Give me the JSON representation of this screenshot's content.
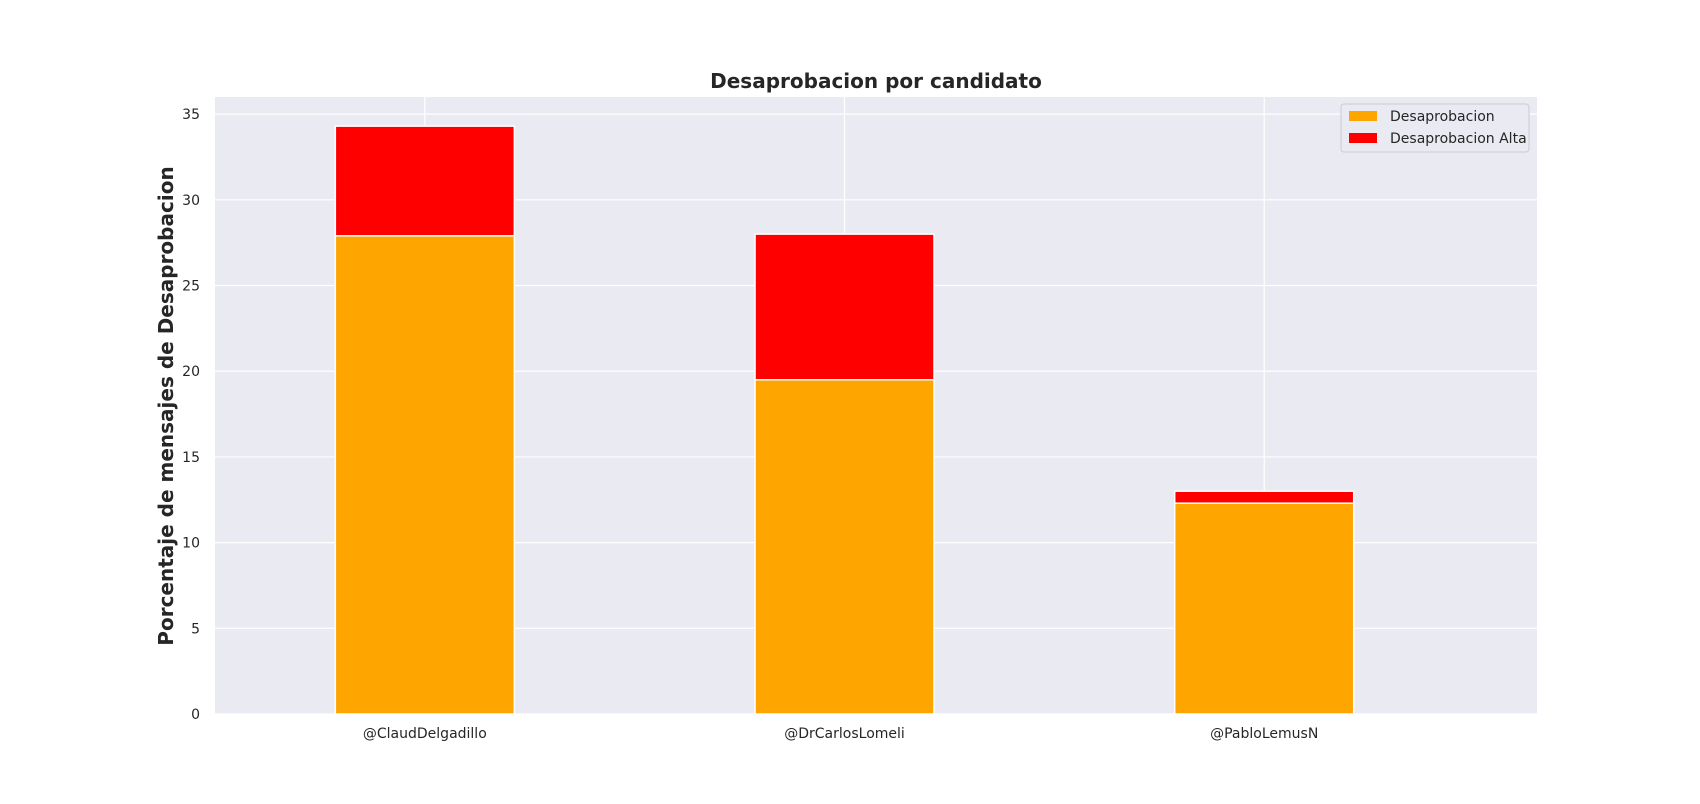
{
  "chart_data": {
    "type": "bar",
    "stacked": true,
    "title": "Desaprobacion por candidato",
    "xlabel": "",
    "ylabel": "Porcentaje de mensajes de Desaprobacion",
    "categories": [
      "@ClaudDelgadillo",
      "@DrCarlosLomeli",
      "@PabloLemusN"
    ],
    "series": [
      {
        "name": "Desaprobacion",
        "color": "#FFA500",
        "values": [
          27.9,
          19.5,
          12.3
        ]
      },
      {
        "name": "Desaprobacion Alta",
        "color": "#FF0000",
        "values": [
          6.4,
          8.5,
          0.7
        ]
      }
    ],
    "ylim": [
      0,
      36
    ],
    "yticks": [
      "0",
      "5",
      "10",
      "15",
      "20",
      "25",
      "30",
      "35"
    ],
    "grid": true,
    "legend_position": "top-right",
    "background_color": "#EAEAF2",
    "grid_color": "#FFFFFF"
  }
}
